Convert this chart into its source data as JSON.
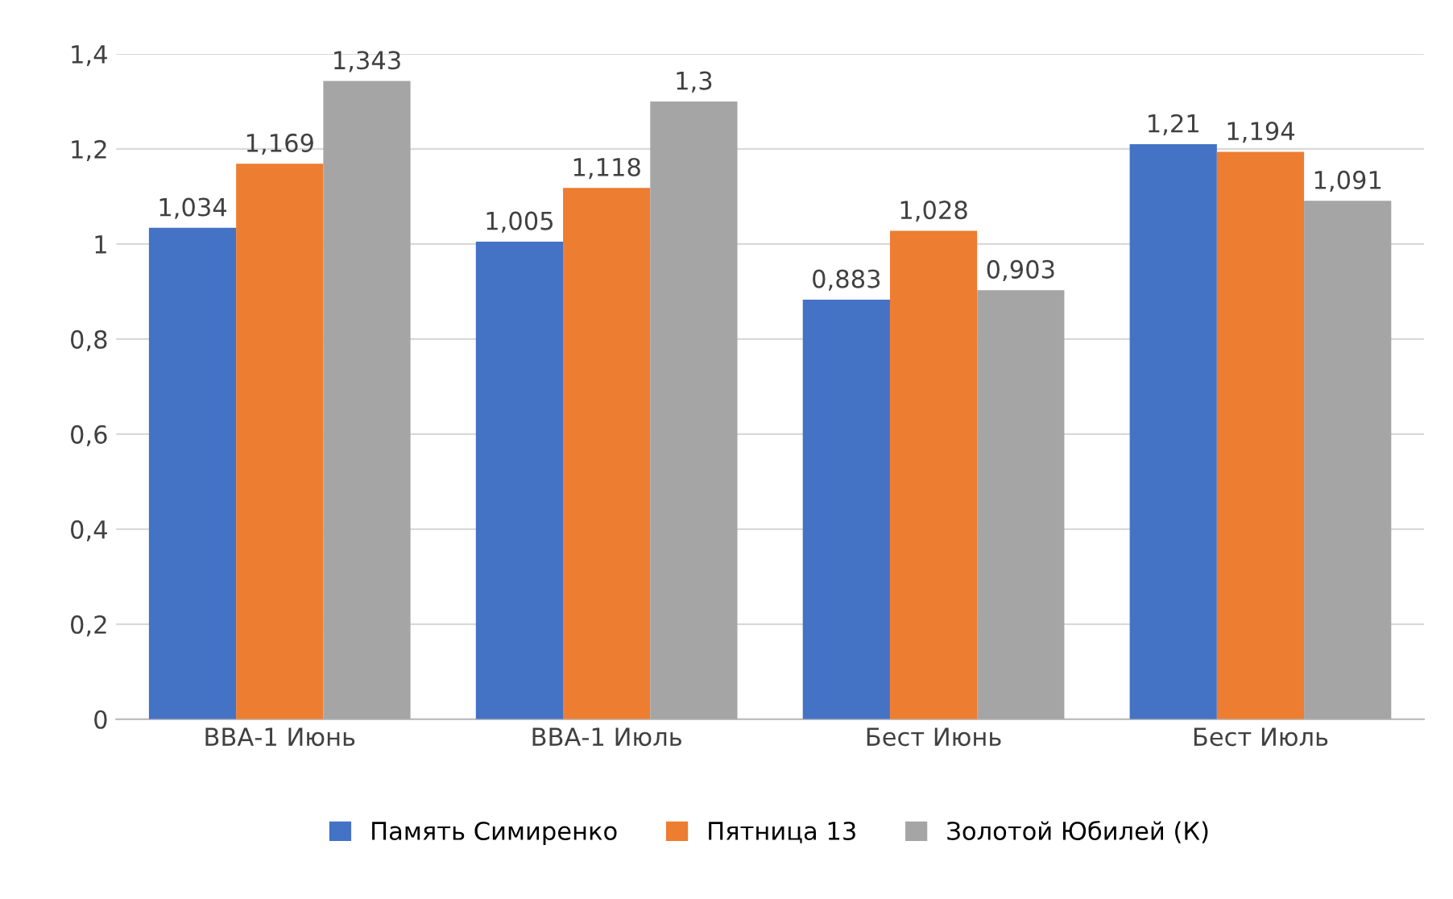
{
  "chart_data": {
    "type": "bar",
    "categories": [
      "ВВА-1 Июнь",
      "ВВА-1 Июль",
      "Бест Июнь",
      "Бест Июль"
    ],
    "series": [
      {
        "name": "Память Симиренко",
        "color": "#4472c4",
        "values": [
          1.034,
          1.005,
          0.883,
          1.21
        ],
        "value_labels": [
          "1,034",
          "1,005",
          "0,883",
          "1,21"
        ]
      },
      {
        "name": "Пятница 13",
        "color": "#ed7d31",
        "values": [
          1.169,
          1.118,
          1.028,
          1.194
        ],
        "value_labels": [
          "1,169",
          "1,118",
          "1,028",
          "1,194"
        ]
      },
      {
        "name": "Золотой Юбилей (К)",
        "color": "#a5a5a5",
        "values": [
          1.343,
          1.3,
          0.903,
          1.091
        ],
        "value_labels": [
          "1,343",
          "1,3",
          "0,903",
          "1,091"
        ]
      }
    ],
    "ylim": [
      0,
      1.4
    ],
    "yticks": [
      0,
      {
        "value": 0.2,
        "label": "0,2"
      },
      {
        "value": 0.4,
        "label": "0,4"
      },
      {
        "value": 0.6,
        "label": "0,6"
      },
      {
        "value": 0.8,
        "label": "0,8"
      },
      1,
      {
        "value": 1.2,
        "label": "1,2"
      },
      {
        "value": 1.4,
        "label": "1,4"
      }
    ],
    "grid": "y",
    "legend": "bottom"
  }
}
